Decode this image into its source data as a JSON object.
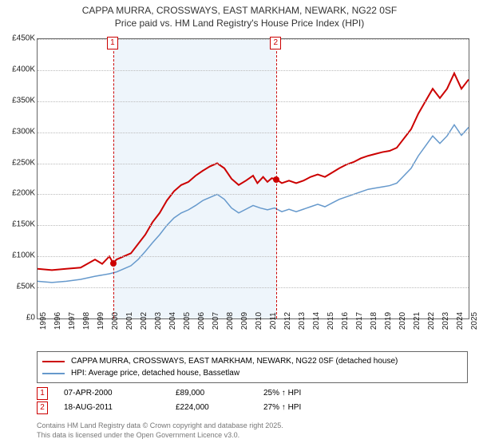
{
  "title_line1": "CAPPA MURRA, CROSSWAYS, EAST MARKHAM, NEWARK, NG22 0SF",
  "title_line2": "Price paid vs. HM Land Registry's House Price Index (HPI)",
  "chart": {
    "type": "line",
    "x_start_year": 1995,
    "x_end_year": 2025,
    "ylim": [
      0,
      450000
    ],
    "ytick_step": 50000,
    "yticks": [
      "£0",
      "£50K",
      "£100K",
      "£150K",
      "£200K",
      "£250K",
      "£300K",
      "£350K",
      "£400K",
      "£450K"
    ],
    "xticks": [
      "1995",
      "1996",
      "1997",
      "1998",
      "1999",
      "2000",
      "2001",
      "2002",
      "2003",
      "2004",
      "2005",
      "2006",
      "2007",
      "2008",
      "2009",
      "2010",
      "2011",
      "2012",
      "2013",
      "2014",
      "2015",
      "2016",
      "2017",
      "2018",
      "2019",
      "2020",
      "2021",
      "2022",
      "2023",
      "2024",
      "2025"
    ],
    "background_color": "#ffffff",
    "shade_color": "#eef5fb",
    "grid_color": "#bbbbbb",
    "series": {
      "price_paid": {
        "label": "CAPPA MURRA, CROSSWAYS, EAST MARKHAM, NEWARK, NG22 0SF (detached house)",
        "color": "#cc0000",
        "width": 2,
        "data": [
          [
            1995.0,
            80000
          ],
          [
            1996.0,
            78000
          ],
          [
            1997.0,
            80000
          ],
          [
            1998.0,
            82000
          ],
          [
            1999.0,
            95000
          ],
          [
            1999.5,
            88000
          ],
          [
            2000.0,
            100000
          ],
          [
            2000.27,
            89000
          ],
          [
            2000.5,
            95000
          ],
          [
            2001.0,
            100000
          ],
          [
            2001.5,
            105000
          ],
          [
            2002.0,
            120000
          ],
          [
            2002.5,
            135000
          ],
          [
            2003.0,
            155000
          ],
          [
            2003.5,
            170000
          ],
          [
            2004.0,
            190000
          ],
          [
            2004.5,
            205000
          ],
          [
            2005.0,
            215000
          ],
          [
            2005.5,
            220000
          ],
          [
            2006.0,
            230000
          ],
          [
            2006.5,
            238000
          ],
          [
            2007.0,
            245000
          ],
          [
            2007.5,
            250000
          ],
          [
            2008.0,
            242000
          ],
          [
            2008.5,
            225000
          ],
          [
            2009.0,
            215000
          ],
          [
            2009.5,
            222000
          ],
          [
            2010.0,
            230000
          ],
          [
            2010.3,
            218000
          ],
          [
            2010.7,
            228000
          ],
          [
            2011.0,
            220000
          ],
          [
            2011.3,
            226000
          ],
          [
            2011.63,
            224000
          ],
          [
            2012.0,
            218000
          ],
          [
            2012.5,
            222000
          ],
          [
            2013.0,
            218000
          ],
          [
            2013.5,
            222000
          ],
          [
            2014.0,
            228000
          ],
          [
            2014.5,
            232000
          ],
          [
            2015.0,
            228000
          ],
          [
            2015.5,
            235000
          ],
          [
            2016.0,
            242000
          ],
          [
            2016.5,
            248000
          ],
          [
            2017.0,
            252000
          ],
          [
            2017.5,
            258000
          ],
          [
            2018.0,
            262000
          ],
          [
            2018.5,
            265000
          ],
          [
            2019.0,
            268000
          ],
          [
            2019.5,
            270000
          ],
          [
            2020.0,
            275000
          ],
          [
            2020.5,
            290000
          ],
          [
            2021.0,
            305000
          ],
          [
            2021.5,
            330000
          ],
          [
            2022.0,
            350000
          ],
          [
            2022.5,
            370000
          ],
          [
            2023.0,
            355000
          ],
          [
            2023.5,
            370000
          ],
          [
            2024.0,
            395000
          ],
          [
            2024.5,
            370000
          ],
          [
            2025.0,
            385000
          ]
        ]
      },
      "hpi": {
        "label": "HPI: Average price, detached house, Bassetlaw",
        "color": "#6699cc",
        "width": 1.5,
        "data": [
          [
            1995.0,
            60000
          ],
          [
            1996.0,
            58000
          ],
          [
            1997.0,
            60000
          ],
          [
            1998.0,
            63000
          ],
          [
            1999.0,
            68000
          ],
          [
            2000.0,
            72000
          ],
          [
            2000.5,
            75000
          ],
          [
            2001.0,
            80000
          ],
          [
            2001.5,
            85000
          ],
          [
            2002.0,
            95000
          ],
          [
            2002.5,
            108000
          ],
          [
            2003.0,
            122000
          ],
          [
            2003.5,
            135000
          ],
          [
            2004.0,
            150000
          ],
          [
            2004.5,
            162000
          ],
          [
            2005.0,
            170000
          ],
          [
            2005.5,
            175000
          ],
          [
            2006.0,
            182000
          ],
          [
            2006.5,
            190000
          ],
          [
            2007.0,
            195000
          ],
          [
            2007.5,
            200000
          ],
          [
            2008.0,
            192000
          ],
          [
            2008.5,
            178000
          ],
          [
            2009.0,
            170000
          ],
          [
            2009.5,
            176000
          ],
          [
            2010.0,
            182000
          ],
          [
            2010.5,
            178000
          ],
          [
            2011.0,
            175000
          ],
          [
            2011.5,
            178000
          ],
          [
            2012.0,
            172000
          ],
          [
            2012.5,
            176000
          ],
          [
            2013.0,
            172000
          ],
          [
            2013.5,
            176000
          ],
          [
            2014.0,
            180000
          ],
          [
            2014.5,
            184000
          ],
          [
            2015.0,
            180000
          ],
          [
            2015.5,
            186000
          ],
          [
            2016.0,
            192000
          ],
          [
            2016.5,
            196000
          ],
          [
            2017.0,
            200000
          ],
          [
            2017.5,
            204000
          ],
          [
            2018.0,
            208000
          ],
          [
            2018.5,
            210000
          ],
          [
            2019.0,
            212000
          ],
          [
            2019.5,
            214000
          ],
          [
            2020.0,
            218000
          ],
          [
            2020.5,
            230000
          ],
          [
            2021.0,
            242000
          ],
          [
            2021.5,
            262000
          ],
          [
            2022.0,
            278000
          ],
          [
            2022.5,
            294000
          ],
          [
            2023.0,
            282000
          ],
          [
            2023.5,
            294000
          ],
          [
            2024.0,
            312000
          ],
          [
            2024.5,
            295000
          ],
          [
            2025.0,
            308000
          ]
        ]
      }
    },
    "sale_markers": [
      {
        "n": "1",
        "year": 2000.27,
        "price": 89000,
        "color": "#cc0000"
      },
      {
        "n": "2",
        "year": 2011.63,
        "price": 224000,
        "color": "#cc0000"
      }
    ]
  },
  "legend": {
    "row1_label": "CAPPA MURRA, CROSSWAYS, EAST MARKHAM, NEWARK, NG22 0SF (detached house)",
    "row2_label": "HPI: Average price, detached house, Bassetlaw"
  },
  "sales": [
    {
      "n": "1",
      "date": "07-APR-2000",
      "price": "£89,000",
      "pct": "25% ↑ HPI",
      "color": "#cc0000"
    },
    {
      "n": "2",
      "date": "18-AUG-2011",
      "price": "£224,000",
      "pct": "27% ↑ HPI",
      "color": "#cc0000"
    }
  ],
  "credits_line1": "Contains HM Land Registry data © Crown copyright and database right 2025.",
  "credits_line2": "This data is licensed under the Open Government Licence v3.0."
}
